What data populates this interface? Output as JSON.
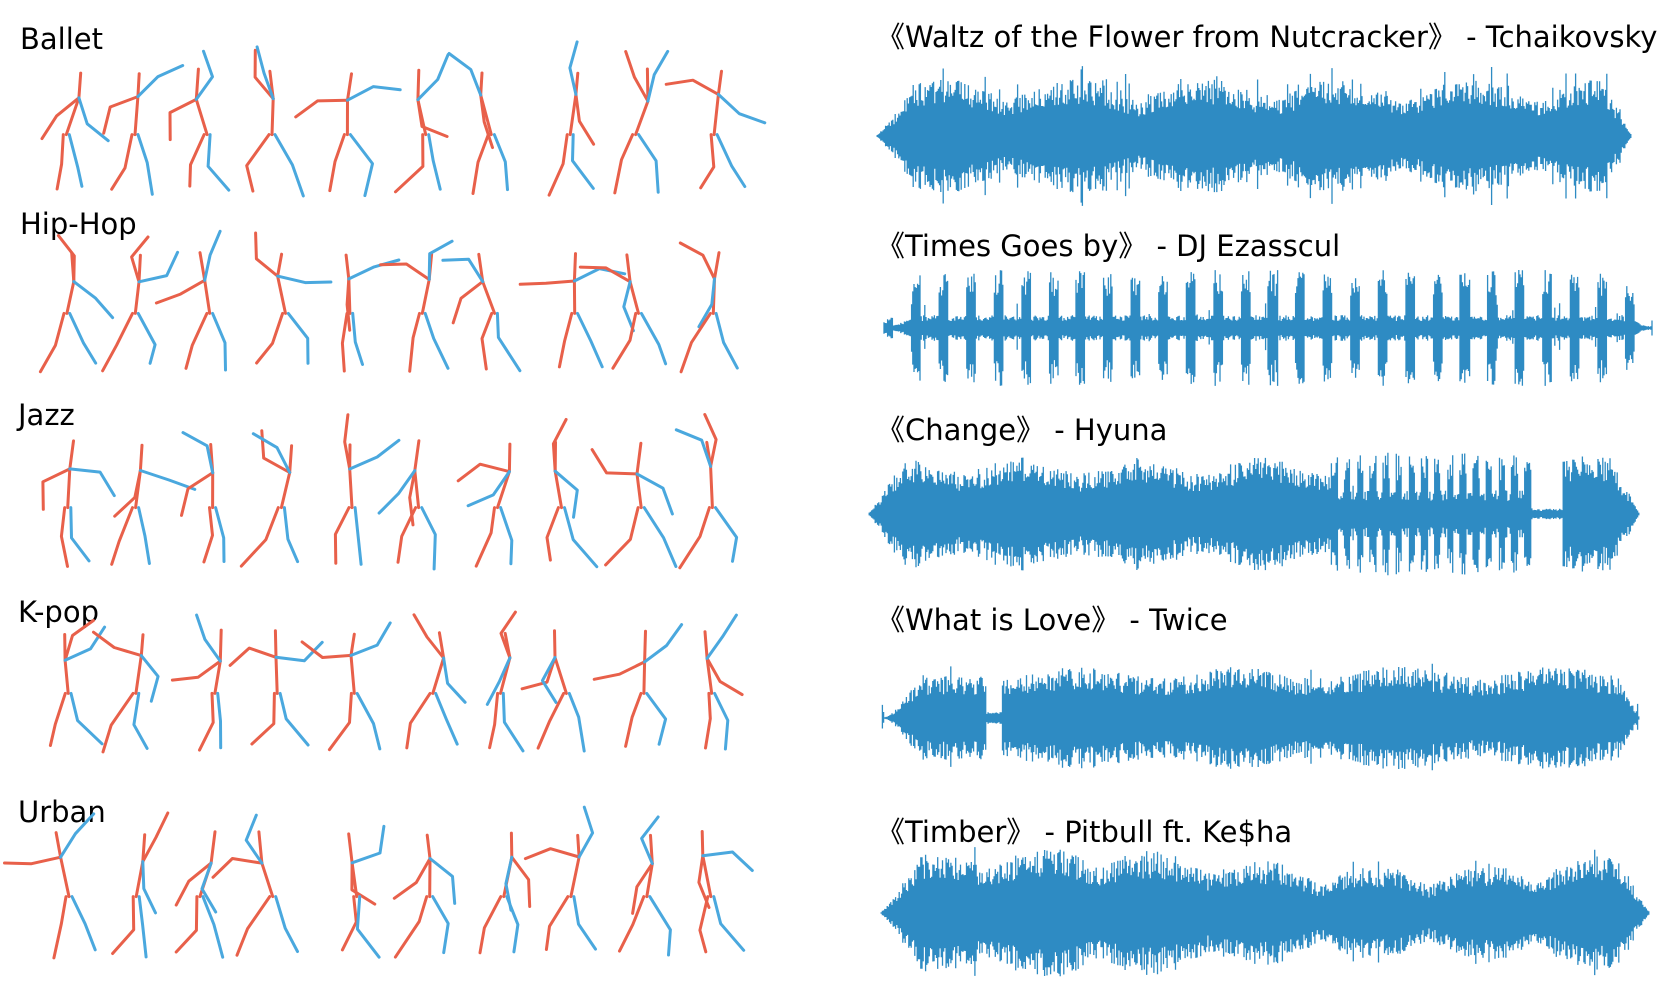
{
  "colors": {
    "left_limb": "#e8604a",
    "right_limb": "#4aa8de",
    "waveform": "#2e8bc3",
    "background": "#ffffff"
  },
  "genres": [
    {
      "label": "Ballet"
    },
    {
      "label": "Hip-Hop"
    },
    {
      "label": "Jazz"
    },
    {
      "label": "K-pop"
    },
    {
      "label": "Urban"
    }
  ],
  "songs": [
    {
      "title": "《Waltz of the Flower from Nutcracker》 - Tchaikovsky"
    },
    {
      "title": "《Times Goes by》 - DJ Ezasscul"
    },
    {
      "title": "《Change》 - Hyuna"
    },
    {
      "title": "《What is Love》 - Twice"
    },
    {
      "title": "《Timber》 - Pitbull ft. Ke$ha"
    }
  ],
  "figures_per_row": 10
}
